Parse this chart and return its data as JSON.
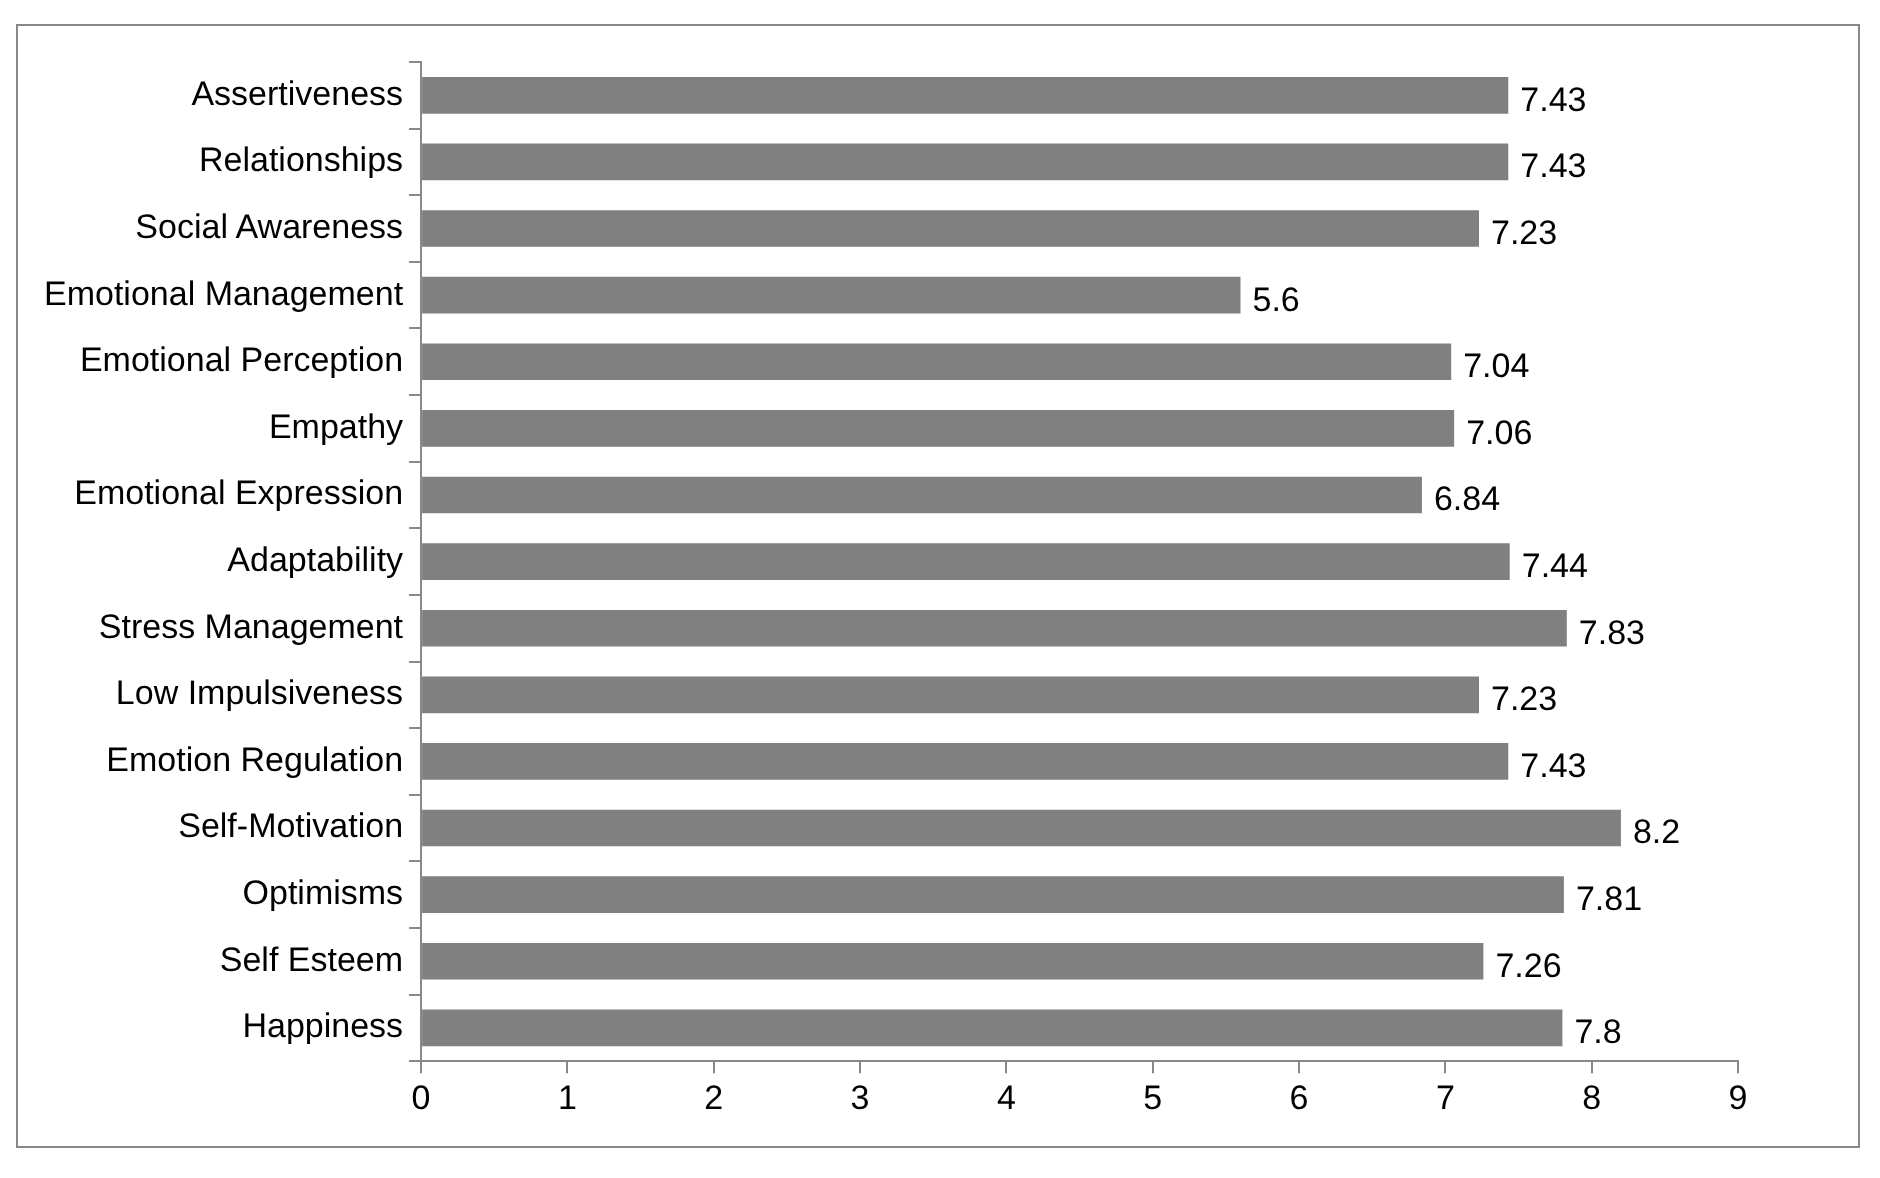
{
  "chart_data": {
    "type": "bar",
    "orientation": "horizontal",
    "categories": [
      "Assertiveness",
      "Relationships",
      "Social Awareness",
      "Emotional Management",
      "Emotional Perception",
      "Empathy",
      "Emotional Expression",
      "Adaptability",
      "Stress Management",
      "Low Impulsiveness",
      "Emotion Regulation",
      "Self-Motivation",
      "Optimisms",
      "Self Esteem",
      "Happiness"
    ],
    "values": [
      7.43,
      7.43,
      7.23,
      5.6,
      7.04,
      7.06,
      6.84,
      7.44,
      7.83,
      7.23,
      7.43,
      8.2,
      7.81,
      7.26,
      7.8
    ],
    "color": "#808080",
    "xlim": [
      0,
      9
    ],
    "xticks": [
      0,
      1,
      2,
      3,
      4,
      5,
      6,
      7,
      8,
      9
    ],
    "grid": false,
    "legend": false,
    "data_labels": true
  }
}
